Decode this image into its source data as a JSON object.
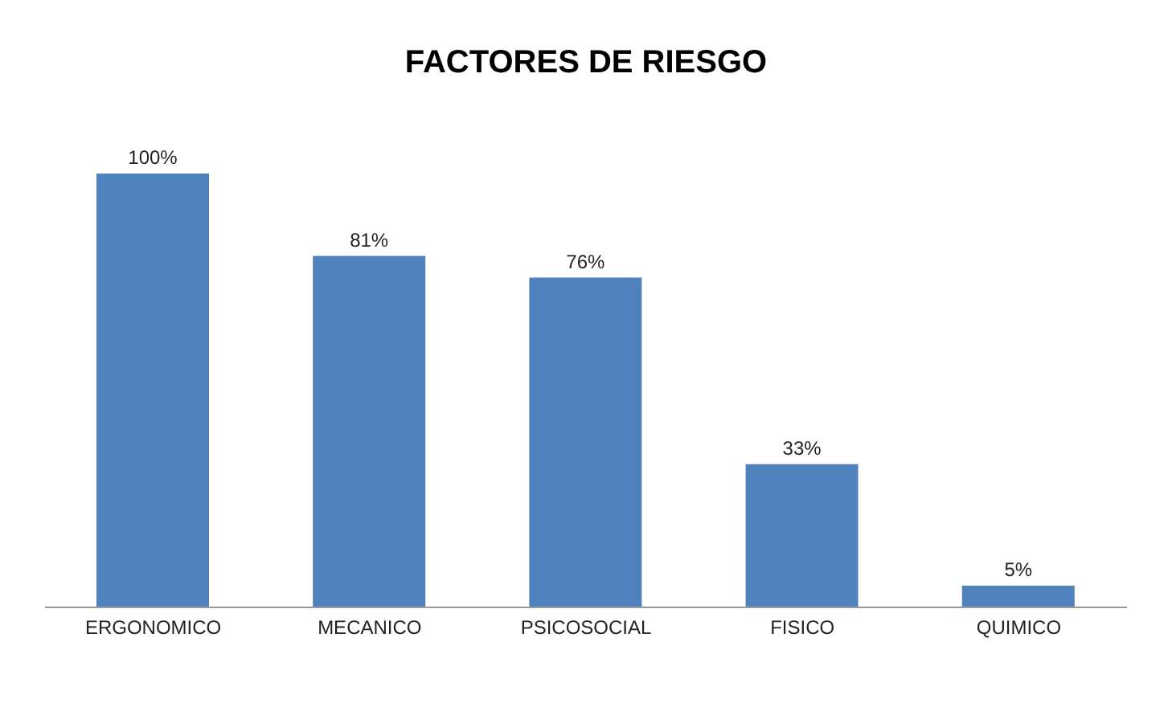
{
  "chart_data": {
    "type": "bar",
    "title": "FACTORES DE RIESGO",
    "categories": [
      "ERGONOMICO",
      "MECANICO",
      "PSICOSOCIAL",
      "FISICO",
      "QUIMICO"
    ],
    "values": [
      100,
      81,
      76,
      33,
      5
    ],
    "value_labels": [
      "100%",
      "81%",
      "76%",
      "33%",
      "5%"
    ],
    "color": "#4f81bd",
    "grid": false,
    "legend": false
  }
}
